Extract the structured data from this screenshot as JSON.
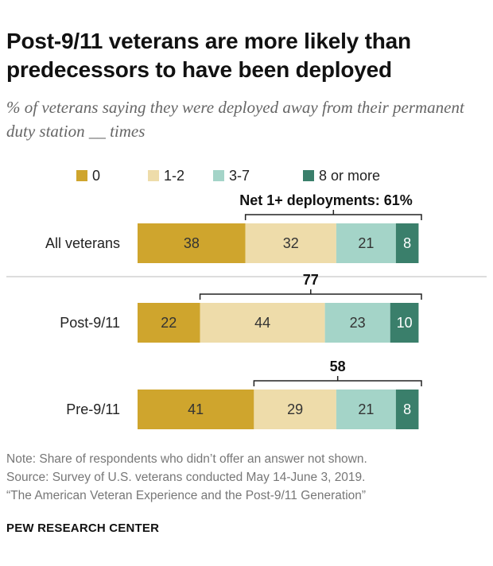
{
  "title": "Post-9/11 veterans are more likely than predecessors to have been deployed",
  "subtitle": "% of veterans saying they were deployed away from their permanent duty station __ times",
  "chart_data": {
    "type": "bar",
    "orientation": "horizontal",
    "stacked": true,
    "categories": [
      "All veterans",
      "Post-9/11",
      "Pre-9/11"
    ],
    "series": [
      {
        "name": "0",
        "values": [
          38,
          22,
          41
        ],
        "color": "#cfa52d"
      },
      {
        "name": "1-2",
        "values": [
          32,
          44,
          29
        ],
        "color": "#eedcaa"
      },
      {
        "name": "3-7",
        "values": [
          21,
          23,
          21
        ],
        "color": "#a4d4c8"
      },
      {
        "name": "8 or more",
        "values": [
          8,
          10,
          8
        ],
        "color": "#3a7f6b"
      }
    ],
    "net_labels": [
      "Net 1+ deployments: 61%",
      "77",
      "58"
    ],
    "net_values": [
      61,
      77,
      58
    ],
    "legend_position": "top",
    "xlim": [
      0,
      100
    ]
  },
  "notes": [
    "Note: Share of respondents who didn’t offer an answer not shown.",
    "Source: Survey of U.S. veterans conducted May 14-June 3, 2019.",
    "“The American Veteran Experience and the Post-9/11 Generation”"
  ],
  "org": "PEW RESEARCH CENTER",
  "colors": {
    "top_bar": "#ffffff",
    "divider": "#bbbbbb",
    "bracket": "#222222"
  }
}
